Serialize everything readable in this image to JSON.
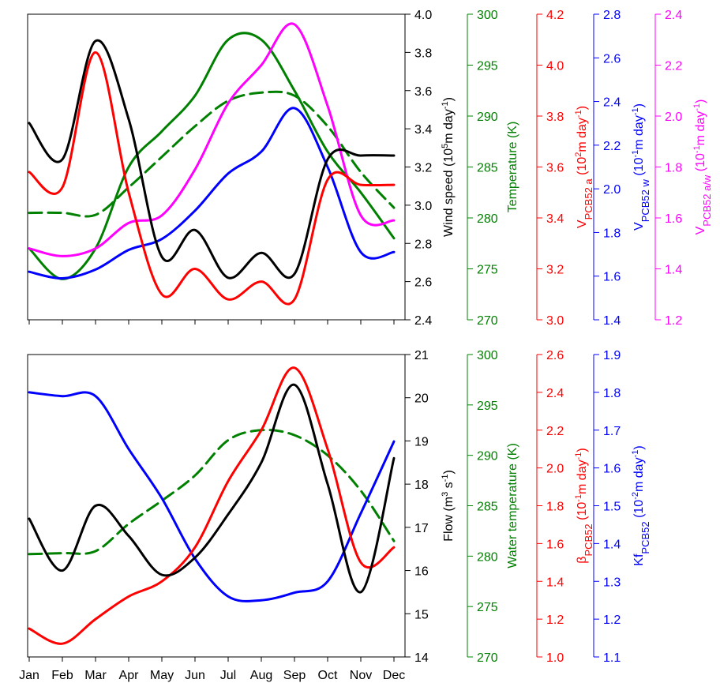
{
  "chart_data": [
    {
      "type": "line",
      "panel": "top",
      "categories": [
        "Jan",
        "Feb",
        "Mar",
        "Apr",
        "May",
        "Jun",
        "Jul",
        "Aug",
        "Sep",
        "Oct",
        "Nov",
        "Dec"
      ],
      "axes": [
        {
          "id": "wind",
          "label": "Wind speed (10^5m day^-1)",
          "label_parts": [
            [
              "Wind speed (10",
              ""
            ],
            [
              "5",
              "sup"
            ],
            [
              "m day",
              ""
            ],
            [
              "-1",
              "sup"
            ],
            [
              ")",
              ""
            ]
          ],
          "color": "#000000",
          "ylim": [
            2.4,
            4.0
          ],
          "ticks": [
            "2.4",
            "2.6",
            "2.8",
            "3.0",
            "3.2",
            "3.4",
            "3.6",
            "3.8",
            "4.0"
          ]
        },
        {
          "id": "temp",
          "label": "Temperature (K)",
          "label_parts": [
            [
              "Temperature (K)",
              ""
            ]
          ],
          "color": "#008000",
          "ylim": [
            270,
            300
          ],
          "ticks": [
            "270",
            "275",
            "280",
            "285",
            "290",
            "295",
            "300"
          ]
        },
        {
          "id": "va",
          "label": "VPCB52 a (10^2m day^-1)",
          "label_parts": [
            [
              "V",
              ""
            ],
            [
              "PCB52 a",
              "sub"
            ],
            [
              " (10",
              ""
            ],
            [
              "2",
              "sup"
            ],
            [
              "m day",
              ""
            ],
            [
              "-1",
              "sup"
            ],
            [
              ")",
              ""
            ]
          ],
          "color": "#ff0000",
          "ylim": [
            3.0,
            4.2
          ],
          "ticks": [
            "3.0",
            "3.2",
            "3.4",
            "3.6",
            "3.8",
            "4.0",
            "4.2"
          ]
        },
        {
          "id": "vw",
          "label": "VPCB52 w (10^-1m day^-1)",
          "label_parts": [
            [
              "V",
              ""
            ],
            [
              "PCB52 w",
              "sub"
            ],
            [
              " (10",
              ""
            ],
            [
              "-1",
              "sup"
            ],
            [
              "m day",
              ""
            ],
            [
              "-1",
              "sup"
            ],
            [
              ")",
              ""
            ]
          ],
          "color": "#0000ff",
          "ylim": [
            1.4,
            2.8
          ],
          "ticks": [
            "1.4",
            "1.6",
            "1.8",
            "2.0",
            "2.2",
            "2.4",
            "2.6",
            "2.8"
          ]
        },
        {
          "id": "vaw",
          "label": "VPCB52 a/w (10^-1m day^-1)",
          "label_parts": [
            [
              "V",
              ""
            ],
            [
              "PCB52 a/w",
              "sub"
            ],
            [
              " (10",
              ""
            ],
            [
              "-1",
              "sup"
            ],
            [
              "m day",
              ""
            ],
            [
              "-1",
              "sup"
            ],
            [
              ")",
              ""
            ]
          ],
          "color": "#ff00ff",
          "ylim": [
            1.2,
            2.4
          ],
          "ticks": [
            "1.2",
            "1.4",
            "1.6",
            "1.8",
            "2.0",
            "2.2",
            "2.4"
          ]
        }
      ],
      "series": [
        {
          "axis": "temp",
          "color": "#008000",
          "dashed": true,
          "x": [
            1,
            2,
            3,
            4,
            5,
            6,
            7,
            8,
            9,
            10,
            11,
            12
          ],
          "values": [
            280.5,
            280.5,
            280.3,
            283.0,
            286.0,
            289.0,
            291.5,
            292.3,
            292.0,
            289.0,
            284.5,
            281.0
          ]
        },
        {
          "axis": "temp",
          "color": "#008000",
          "dashed": false,
          "x": [
            1,
            2,
            3,
            4,
            5,
            6,
            7,
            8,
            9,
            10,
            11,
            12
          ],
          "values": [
            277.0,
            274.0,
            277.0,
            285.0,
            288.5,
            292.0,
            297.5,
            297.5,
            292.5,
            286.5,
            282.5,
            278.0
          ]
        },
        {
          "axis": "vw",
          "color": "#0000ff",
          "dashed": false,
          "x": [
            1,
            2,
            3,
            4,
            5,
            6,
            7,
            8,
            9,
            10,
            11,
            12
          ],
          "values": [
            1.62,
            1.59,
            1.63,
            1.72,
            1.77,
            1.9,
            2.07,
            2.17,
            2.37,
            2.1,
            1.71,
            1.71
          ]
        },
        {
          "axis": "vaw",
          "color": "#ff00ff",
          "dashed": false,
          "x": [
            1,
            2,
            3,
            4,
            5,
            6,
            7,
            8,
            9,
            10,
            11,
            12
          ],
          "values": [
            1.48,
            1.45,
            1.48,
            1.58,
            1.61,
            1.79,
            2.05,
            2.2,
            2.36,
            2.04,
            1.61,
            1.59
          ]
        },
        {
          "axis": "va",
          "color": "#ff0000",
          "dashed": false,
          "x": [
            1,
            2,
            3,
            4,
            5,
            6,
            7,
            8,
            9,
            10,
            11,
            12
          ],
          "values": [
            3.58,
            3.52,
            4.05,
            3.5,
            3.1,
            3.2,
            3.08,
            3.15,
            3.08,
            3.55,
            3.53,
            3.53
          ]
        },
        {
          "axis": "wind",
          "color": "#000000",
          "dashed": false,
          "x": [
            1,
            2,
            3,
            4,
            5,
            6,
            7,
            8,
            9,
            10,
            11,
            12
          ],
          "values": [
            3.43,
            3.24,
            3.86,
            3.45,
            2.73,
            2.87,
            2.62,
            2.75,
            2.64,
            3.24,
            3.26,
            3.26
          ]
        }
      ]
    },
    {
      "type": "line",
      "panel": "bottom",
      "categories": [
        "Jan",
        "Feb",
        "Mar",
        "Apr",
        "May",
        "Jun",
        "Jul",
        "Aug",
        "Sep",
        "Oct",
        "Nov",
        "Dec"
      ],
      "axes": [
        {
          "id": "flow",
          "label": "Flow (m^3 s^-1)",
          "label_parts": [
            [
              "Flow (m",
              ""
            ],
            [
              "3",
              "sup"
            ],
            [
              " s",
              ""
            ],
            [
              "-1",
              "sup"
            ],
            [
              ")",
              ""
            ]
          ],
          "color": "#000000",
          "ylim": [
            14,
            21
          ],
          "ticks": [
            "14",
            "15",
            "16",
            "17",
            "18",
            "19",
            "20",
            "21"
          ]
        },
        {
          "id": "wtemp",
          "label": "Water temperature (K)",
          "label_parts": [
            [
              "Water temperature (K)",
              ""
            ]
          ],
          "color": "#008000",
          "ylim": [
            270,
            300
          ],
          "ticks": [
            "270",
            "275",
            "280",
            "285",
            "290",
            "295",
            "300"
          ]
        },
        {
          "id": "beta",
          "label": "βPCB52 (10^-1m day^-1)",
          "label_parts": [
            [
              "β",
              ""
            ],
            [
              "PCB52",
              "sub"
            ],
            [
              " (10",
              ""
            ],
            [
              "-1",
              "sup"
            ],
            [
              "m day",
              ""
            ],
            [
              "-1",
              "sup"
            ],
            [
              ")",
              ""
            ]
          ],
          "color": "#ff0000",
          "ylim": [
            1.0,
            2.6
          ],
          "ticks": [
            "1.0",
            "1.2",
            "1.4",
            "1.6",
            "1.8",
            "2.0",
            "2.2",
            "2.4",
            "2.6"
          ]
        },
        {
          "id": "kf",
          "label": "KfPCB52 (10^-2m day^-1)",
          "label_parts": [
            [
              "Kf",
              ""
            ],
            [
              "PCB52",
              "sub"
            ],
            [
              " (10",
              ""
            ],
            [
              "-2",
              "sup"
            ],
            [
              "m day",
              ""
            ],
            [
              "-1",
              "sup"
            ],
            [
              ")",
              ""
            ]
          ],
          "color": "#0000ff",
          "ylim": [
            1.1,
            1.9
          ],
          "ticks": [
            "1.1",
            "1.2",
            "1.3",
            "1.4",
            "1.5",
            "1.6",
            "1.7",
            "1.8",
            "1.9"
          ]
        }
      ],
      "series": [
        {
          "axis": "wtemp",
          "color": "#008000",
          "dashed": true,
          "x": [
            1,
            2,
            3,
            4,
            5,
            6,
            7,
            8,
            9,
            10,
            11,
            12
          ],
          "values": [
            280.2,
            280.3,
            280.5,
            283.2,
            285.5,
            288.0,
            291.5,
            292.5,
            292.0,
            290.0,
            286.5,
            281.5
          ]
        },
        {
          "axis": "kf",
          "color": "#0000ff",
          "dashed": false,
          "x": [
            1,
            2,
            3,
            4,
            5,
            6,
            7,
            8,
            9,
            10,
            11,
            12
          ],
          "values": [
            1.8,
            1.79,
            1.79,
            1.65,
            1.52,
            1.36,
            1.26,
            1.25,
            1.27,
            1.3,
            1.48,
            1.67
          ]
        },
        {
          "axis": "beta",
          "color": "#ff0000",
          "dashed": false,
          "x": [
            1,
            2,
            3,
            4,
            5,
            6,
            7,
            8,
            9,
            10,
            11,
            12
          ],
          "values": [
            1.15,
            1.07,
            1.2,
            1.32,
            1.4,
            1.58,
            1.93,
            2.2,
            2.53,
            2.1,
            1.5,
            1.58
          ]
        },
        {
          "axis": "flow",
          "color": "#000000",
          "dashed": false,
          "x": [
            1,
            2,
            3,
            4,
            5,
            6,
            7,
            8,
            9,
            10,
            11,
            12
          ],
          "values": [
            17.2,
            16.0,
            17.5,
            16.8,
            15.9,
            16.3,
            17.3,
            18.5,
            20.3,
            18.0,
            15.5,
            18.6
          ]
        }
      ]
    }
  ]
}
